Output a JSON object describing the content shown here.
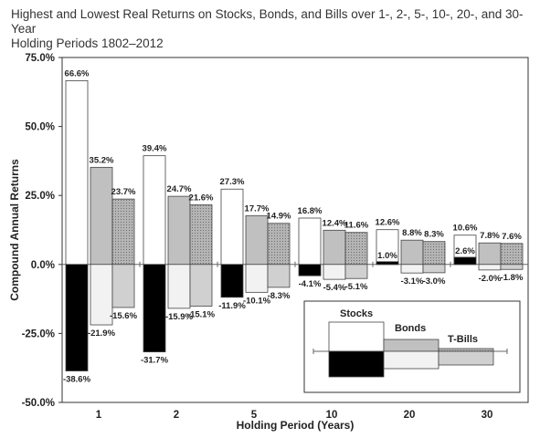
{
  "title_lines": [
    "Highest and Lowest Real Returns on Stocks, Bonds, and Bills over 1-, 2-, 5-, 10-, 20-, and 30-Year",
    "Holding Periods 1802–2012"
  ],
  "chart_data": {
    "type": "bar",
    "title": "Highest and Lowest Real Returns on Stocks, Bonds, and Bills over 1-, 2-, 5-, 10-, 20-, and 30-Year Holding Periods 1802–2012",
    "xlabel": "Holding Period (Years)",
    "ylabel": "Compound Annual Returns",
    "ylim": [
      -50,
      75
    ],
    "yticks": [
      "75.0%",
      "50.0%",
      "25.0%",
      "0.0%",
      "-25.0%",
      "-50.0%"
    ],
    "ytick_values": [
      75,
      50,
      25,
      0,
      -25,
      -50
    ],
    "categories": [
      "1",
      "2",
      "5",
      "10",
      "20",
      "30"
    ],
    "series": [
      {
        "name": "Stocks",
        "high": [
          66.6,
          39.4,
          27.3,
          16.8,
          12.6,
          10.6
        ],
        "low": [
          -38.6,
          -31.7,
          -11.9,
          -4.1,
          1.0,
          2.6
        ],
        "high_labels": [
          "66.6%",
          "39.4%",
          "27.3%",
          "16.8%",
          "12.6%",
          "10.6%"
        ],
        "low_labels": [
          "-38.6%",
          "-31.7%",
          "-11.9%",
          "-4.1%",
          "1.0%",
          "2.6%"
        ]
      },
      {
        "name": "Bonds",
        "high": [
          35.2,
          24.7,
          17.7,
          12.4,
          8.8,
          7.8
        ],
        "low": [
          -21.9,
          -15.9,
          -10.1,
          -5.4,
          -3.1,
          -2.0
        ],
        "high_labels": [
          "35.2%",
          "24.7%",
          "17.7%",
          "12.4%",
          "8.8%",
          "7.8%"
        ],
        "low_labels": [
          "-21.9%",
          "-15.9%",
          "-10.1%",
          "-5.4%",
          "-3.1%",
          "-2.0%"
        ]
      },
      {
        "name": "T-Bills",
        "high": [
          23.7,
          21.6,
          14.9,
          11.6,
          8.3,
          7.6
        ],
        "low": [
          -15.6,
          -15.1,
          -8.3,
          -5.1,
          -3.0,
          -1.8
        ],
        "high_labels": [
          "23.7%",
          "21.6%",
          "14.9%",
          "11.6%",
          "8.3%",
          "7.6%"
        ],
        "low_labels": [
          "-15.6%",
          "-15.1%",
          "-8.3%",
          "-5.1%",
          "-3.0%",
          "-1.8%"
        ]
      }
    ],
    "colors": {
      "stocks_high": "#ffffff",
      "stocks_low": "#000000",
      "bonds_high": "#c0c0c0",
      "bonds_low": "#f2f2f2",
      "tbills_high": "#a6a6a6",
      "tbills_low": "#d0d0d0"
    },
    "grid": false,
    "legend": "bottom-right"
  }
}
